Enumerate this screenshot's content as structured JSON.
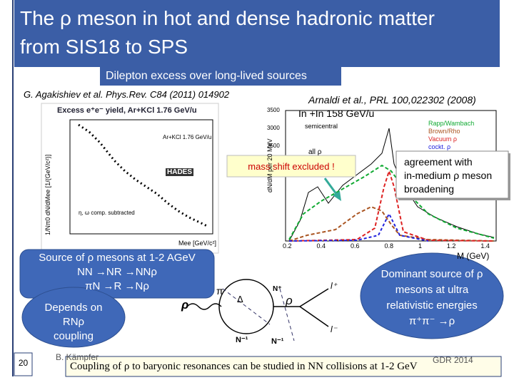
{
  "header": {
    "title_lines": [
      "The ρ meson in hot and dense hadronic matter",
      "from SIS18 to SPS"
    ]
  },
  "subtitle": "Dilepton excess over long-lived sources",
  "left_panel": {
    "citation": "G. Agakishiev et al. Phys.Rev. C84 (2011) 014902",
    "plot_title": "Excess e⁺e⁻ yield, Ar+KCl 1.76 GeV/u",
    "experiment": "HADES",
    "inset": "Ar+KCl 1.76 GeV/u",
    "note": "η, ω comp. subtracted",
    "x_label": "Mee [GeV/c²]",
    "y_label": "1/Nπ0 dN/dMee [1/(GeV/c²)]"
  },
  "right_panel": {
    "citation": "Arnaldi et al., PRL 100,022302 (2008)",
    "system": "In +In 158 GeV/u",
    "y_label": "dN/dM per 20 MeV",
    "x_label": "M (GeV)",
    "centrality": "semicentral",
    "selection": "all ρ",
    "legend": [
      "Rapp/Wambach",
      "Brown/Rho",
      "Vacuum ρ",
      "cockt. ρ"
    ],
    "x_ticks": [
      "0.2",
      "0.4",
      "0.6",
      "0.8",
      "1",
      "1.2",
      "1.4"
    ],
    "y_ticks": [
      "3500",
      "3000",
      "2500"
    ]
  },
  "callouts": {
    "mass_shift": "mass shift excluded !",
    "agreement_lines": [
      "agreement with",
      "in-medium ρ meson",
      "broadening"
    ],
    "source_lines": [
      "Source of ρ mesons at 1-2 AGeV",
      "NN →NR →NNρ",
      "πN →R →Nρ"
    ],
    "depends_lines": [
      "Depends on",
      "RNρ",
      "coupling"
    ],
    "dominant_lines": [
      "Dominant source of ρ",
      "mesons at  ultra",
      "relativistic energies",
      "π⁺π⁻ →ρ"
    ]
  },
  "diagram": {
    "labels": [
      "ρ",
      "Δ",
      "N⁻¹",
      "π",
      "N⁺",
      "ρ",
      "l⁺",
      "l⁻",
      "N⁻¹"
    ]
  },
  "footer": {
    "page": "20",
    "author": "B. Kämpfer",
    "event": "GDR 2014",
    "conclusion": "Coupling of ρ to baryonic resonances can be studied in NN collisions at 1-2 GeV"
  }
}
